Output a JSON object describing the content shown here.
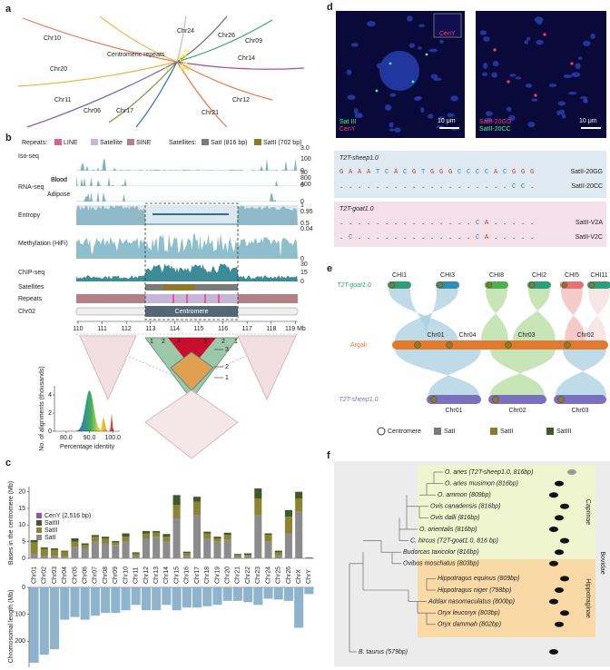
{
  "panel_a": {
    "label": "a",
    "center": "Centromeric repeats",
    "chromosomes": [
      "Chr10",
      "Chr20",
      "Chr11",
      "Chr06",
      "Chr17",
      "Chr21",
      "Chr12",
      "Chr14",
      "Chr09",
      "Chr26",
      "Chr24"
    ]
  },
  "panel_b": {
    "label": "b",
    "legend": {
      "repeats_title": "Repeats:",
      "repeats": [
        "LINE",
        "Satellite",
        "SINE"
      ],
      "satellites_title": "Satellites:",
      "satellites": [
        "SatI (816 bp)",
        "SatII (702 bp)"
      ]
    },
    "tracks": [
      "Iso-seq",
      "Blood",
      "RNA-seq",
      "Blood",
      "Adipose",
      "Entropy",
      "Methylation (HiFi)",
      "ChIP-seq",
      "Satellites",
      "Repeats",
      "Chr02"
    ],
    "centromere": "Centromere",
    "scale_labels": [
      {
        "value": 3,
        "label": "3.0"
      },
      0,
      100,
      50,
      0,
      800,
      400,
      0,
      1,
      0.95,
      0.5,
      0.04,
      0,
      30,
      15,
      0
    ],
    "axis_ticks": [
      110,
      111,
      112,
      113,
      114,
      115,
      116,
      117,
      118,
      {
        "value": 119,
        "label": "119 Mb"
      }
    ],
    "hic_top": [
      "1",
      "2",
      "4",
      "3",
      "2",
      "1"
    ],
    "hic_side": [
      "3",
      "2",
      "1"
    ],
    "inset": {
      "ylabel": "No. of alignments (thousands)",
      "xlabel": "Percentage identity",
      "xticks": [
        {
          "value": 80,
          "label": "80.0"
        },
        {
          "value": 90,
          "label": "90.0"
        },
        {
          "value": 100,
          "label": "100.0"
        }
      ],
      "yticks": [
        0,
        2,
        4
      ]
    }
  },
  "panel_c": {
    "label": "c"
  },
  "chart_data": [
    {
      "type": "bar",
      "stacked": true,
      "ylabel": "Bases in the centromere (Mb)",
      "categories": [
        "Chr01",
        "Chr02",
        "Chr03",
        "Chr04",
        "Chr05",
        "Chr06",
        "Chr07",
        "Chr08",
        "Chr09",
        "Chr10",
        "Chr11",
        "Chr12",
        "Chr13",
        "Chr14",
        "Chr15",
        "Chr16",
        "Chr17",
        "Chr18",
        "Chr19",
        "Chr20",
        "Chr21",
        "Chr22",
        "Chr23",
        "Chr24",
        "Chr25",
        "Chr26",
        "ChrX",
        "ChrY"
      ],
      "series": [
        {
          "name": "CenY (2,516 bp)",
          "color": "#a64ca6",
          "values": [
            0,
            0,
            0,
            0,
            0,
            0,
            0,
            0,
            0,
            0,
            0,
            0,
            0,
            0,
            0,
            0,
            0,
            0,
            0,
            0,
            0,
            0,
            0,
            0,
            0,
            0,
            0,
            0.3
          ]
        },
        {
          "name": "SatIII",
          "color": "#3d5a2a",
          "values": [
            0.7,
            0.5,
            0.5,
            0.3,
            1,
            0.5,
            0.5,
            0.5,
            0.4,
            1,
            0.3,
            0.7,
            0.5,
            0.8,
            3,
            0.4,
            1.5,
            0.5,
            0.5,
            0.7,
            0.3,
            0.4,
            3,
            0.5,
            0.5,
            2,
            2,
            0
          ]
        },
        {
          "name": "SatII",
          "color": "#8c8433",
          "values": [
            3.3,
            2,
            1.7,
            1.5,
            1.5,
            1,
            1.5,
            1.5,
            0.8,
            1.5,
            0.7,
            1.5,
            1.2,
            1.5,
            4,
            0.8,
            4,
            1.5,
            1,
            1.5,
            0.5,
            0.5,
            5,
            2,
            1,
            5,
            4,
            0
          ]
        },
        {
          "name": "SatI",
          "color": "#8c8c8c",
          "values": [
            1.5,
            0.8,
            0.8,
            0.5,
            3.5,
            3,
            5,
            4.5,
            4,
            5,
            0.8,
            6,
            6.5,
            5,
            12,
            0.8,
            13,
            6,
            5,
            5.5,
            0.5,
            0.6,
            13,
            5,
            0.8,
            7.5,
            14,
            0
          ]
        }
      ],
      "ylim": [
        0,
        21
      ],
      "yticks": [
        0,
        5,
        10,
        15,
        20
      ]
    },
    {
      "type": "bar",
      "inverted": true,
      "ylabel": "Chromosomal length (Mb)",
      "color": "#8db4cc",
      "values": [
        280,
        250,
        230,
        120,
        110,
        120,
        105,
        95,
        95,
        85,
        65,
        85,
        85,
        65,
        85,
        75,
        75,
        70,
        65,
        50,
        50,
        55,
        65,
        42,
        45,
        50,
        150,
        25
      ],
      "ylim": [
        0,
        290
      ],
      "yticks": [
        0,
        100,
        200
      ]
    }
  ],
  "panel_d": {
    "label": "d",
    "image1": {
      "labels": [
        "Sat III",
        "CenY"
      ],
      "inset": "CenY",
      "scale": "10 μm"
    },
    "image2": {
      "labels": [
        "SatII-20GG",
        "SatII-20CC"
      ],
      "scale": "10 μm"
    },
    "sheep": {
      "title": "T2T-sheep1.0",
      "rows": [
        {
          "seq": "GAAATCACGTGGGCCCCACGGG",
          "name": "SatII-20GG"
        },
        {
          "seq": "...................CC.",
          "name": "SatII-20CC"
        }
      ]
    },
    "goat": {
      "title": "T2T-goat1.0",
      "rows": [
        {
          "seq": "...............CA.....",
          "name": "SatII-V2A"
        },
        {
          "seq": ".C.............CA.....",
          "name": "SatII-V2C"
        }
      ]
    }
  },
  "panel_e": {
    "label": "e",
    "goat": {
      "name": "T2T-goat1.0",
      "chrs": [
        "CHI1",
        "CHI3",
        "CHI8",
        "CHI2",
        "CHI5",
        "CHI11"
      ]
    },
    "argali": {
      "name": "Argali",
      "chrs": [
        "Chr01",
        "Chr04",
        "Chr03",
        "Chr02"
      ]
    },
    "sheep": {
      "name": "T2T-sheep1.0",
      "chrs": [
        "Chr01",
        "Chr02",
        "Chr03"
      ]
    },
    "legend": [
      "Centromere",
      "SatI",
      "SatII",
      "SatIII"
    ]
  },
  "panel_f": {
    "label": "f",
    "species": [
      "O. aries (T2T-sheep1.0, 816bp)",
      "O. aries musimon (816bp)",
      "O. ammon (809bp)",
      "Ovis canadensis (816bp)",
      "Ovis dalli (816bp)",
      "O. orientalis (816bp)",
      "C. hircus (T2T-goat1.0, 816 bp)",
      "Budorcas taxicolor (816bp)",
      "Ovibos moschatus (803bp)",
      "Hippotragus equinus (809bp)",
      "Hippotragus niger (798bp)",
      "Addax nasomaculatus (800bp)",
      "Oryx leucoryx (803bp)",
      "Oryx dammah (802bp)",
      "B. taurus (579bp)"
    ],
    "groups": [
      "Caprinae",
      "Hippotraginae"
    ],
    "family": "Bovidae"
  }
}
